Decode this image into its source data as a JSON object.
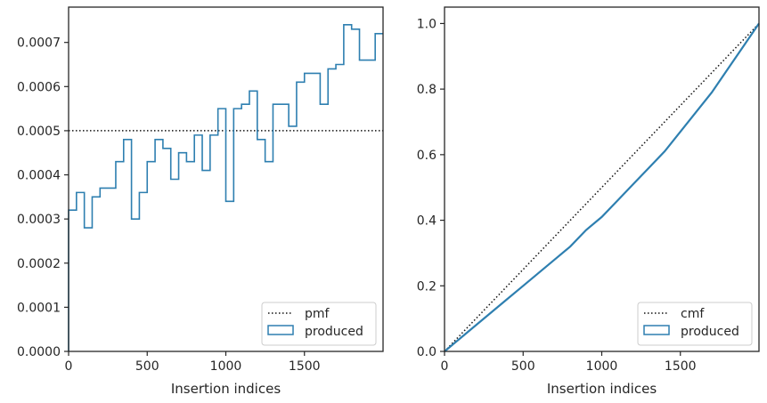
{
  "colors": {
    "series": "#2e7fb0",
    "reference": "#111111",
    "axes": "#262626",
    "legend_border": "#cccccc"
  },
  "chart_data": [
    {
      "type": "step",
      "xlabel": "Insertion indices",
      "ylabel": "",
      "xlim": [
        0,
        2000
      ],
      "ylim": [
        0,
        0.00078
      ],
      "xticks": [
        0,
        500,
        1000,
        1500
      ],
      "xtick_labels": [
        "0",
        "500",
        "1000",
        "1500"
      ],
      "yticks": [
        0,
        0.0001,
        0.0002,
        0.0003,
        0.0004,
        0.0005,
        0.0006,
        0.0007
      ],
      "ytick_labels": [
        "0.0000",
        "0.0001",
        "0.0002",
        "0.0003",
        "0.0004",
        "0.0005",
        "0.0006",
        "0.0007"
      ],
      "grid": false,
      "legend_position": "lower-right",
      "legend": [
        "pmf",
        "produced"
      ],
      "reference_line": {
        "name": "pmf",
        "style": "dotted",
        "value": 0.0005
      },
      "series": [
        {
          "name": "produced",
          "bin_edges": [
            0,
            50,
            100,
            150,
            200,
            250,
            300,
            350,
            400,
            450,
            500,
            550,
            600,
            650,
            700,
            750,
            800,
            850,
            900,
            950,
            1000,
            1050,
            1100,
            1150,
            1200,
            1250,
            1300,
            1350,
            1400,
            1450,
            1500,
            1550,
            1600,
            1650,
            1700,
            1750,
            1800,
            1850,
            1900,
            1950,
            2000
          ],
          "values": [
            0.00032,
            0.00036,
            0.00028,
            0.00035,
            0.00037,
            0.00037,
            0.00043,
            0.00048,
            0.0003,
            0.00036,
            0.00043,
            0.00048,
            0.00046,
            0.00039,
            0.00045,
            0.00043,
            0.00049,
            0.00041,
            0.00049,
            0.00055,
            0.00034,
            0.00055,
            0.00056,
            0.00059,
            0.00048,
            0.00043,
            0.00056,
            0.00056,
            0.00051,
            0.00061,
            0.00063,
            0.00063,
            0.00056,
            0.00064,
            0.00065,
            0.00074,
            0.00073,
            0.00066,
            0.00066,
            0.00072
          ]
        }
      ]
    },
    {
      "type": "step",
      "xlabel": "Insertion indices",
      "ylabel": "",
      "xlim": [
        0,
        2000
      ],
      "ylim": [
        0,
        1.05
      ],
      "xticks": [
        0,
        500,
        1000,
        1500
      ],
      "xtick_labels": [
        "0",
        "500",
        "1000",
        "1500"
      ],
      "yticks": [
        0,
        0.2,
        0.4,
        0.6,
        0.8,
        1.0
      ],
      "ytick_labels": [
        "0.0",
        "0.2",
        "0.4",
        "0.6",
        "0.8",
        "1.0"
      ],
      "grid": false,
      "legend_position": "lower-right",
      "legend": [
        "cmf",
        "produced"
      ],
      "reference_line": {
        "name": "cmf",
        "style": "dotted",
        "from": [
          0,
          0
        ],
        "to": [
          2000,
          1.0
        ]
      },
      "series": [
        {
          "name": "produced",
          "x": [
            0,
            100,
            200,
            300,
            400,
            500,
            600,
            700,
            800,
            900,
            1000,
            1100,
            1200,
            1300,
            1400,
            1500,
            1600,
            1700,
            1800,
            1900,
            2000
          ],
          "y": [
            0,
            0.04,
            0.08,
            0.12,
            0.16,
            0.2,
            0.24,
            0.28,
            0.32,
            0.37,
            0.41,
            0.46,
            0.51,
            0.56,
            0.61,
            0.67,
            0.73,
            0.79,
            0.86,
            0.93,
            1.0
          ]
        }
      ]
    }
  ]
}
